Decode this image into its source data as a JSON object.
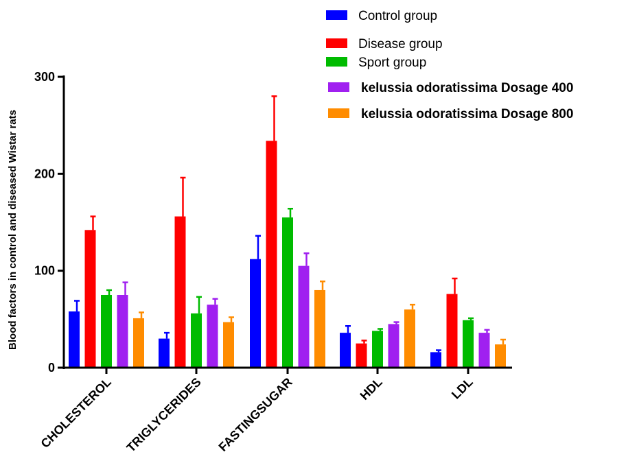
{
  "chart_data": {
    "type": "bar",
    "title": "",
    "xlabel": "",
    "ylabel": "Blood factors in control and diseased Wistar rats",
    "ylim": [
      0,
      300
    ],
    "yticks": [
      0,
      100,
      200,
      300
    ],
    "grid": false,
    "legend_position": "top-right",
    "categories": [
      "CHOLESTEROL",
      "TRIGLYCERIDES",
      "FASTINGSUGAR",
      "HDL",
      "LDL"
    ],
    "series": [
      {
        "name": "Control group",
        "color": "#0000ff",
        "bold": false,
        "values": [
          58,
          30,
          112,
          36,
          16
        ],
        "errors": [
          11,
          6,
          24,
          7,
          2
        ]
      },
      {
        "name": "Disease group",
        "color": "#ff0000",
        "bold": false,
        "values": [
          142,
          156,
          234,
          25,
          76
        ],
        "errors": [
          14,
          40,
          46,
          3,
          16
        ]
      },
      {
        "name": "Sport group",
        "color": "#00bb00",
        "bold": false,
        "values": [
          75,
          56,
          155,
          38,
          49
        ],
        "errors": [
          5,
          17,
          9,
          2,
          2
        ]
      },
      {
        "name": "kelussia odoratissima Dosage 400",
        "color": "#a020f0",
        "bold": true,
        "values": [
          75,
          65,
          105,
          45,
          36
        ],
        "errors": [
          13,
          6,
          13,
          2,
          3
        ]
      },
      {
        "name": "kelussia odoratissima Dosage 800",
        "color": "#ff8c00",
        "bold": true,
        "values": [
          51,
          47,
          80,
          60,
          24
        ],
        "errors": [
          6,
          5,
          9,
          5,
          5
        ]
      }
    ]
  }
}
